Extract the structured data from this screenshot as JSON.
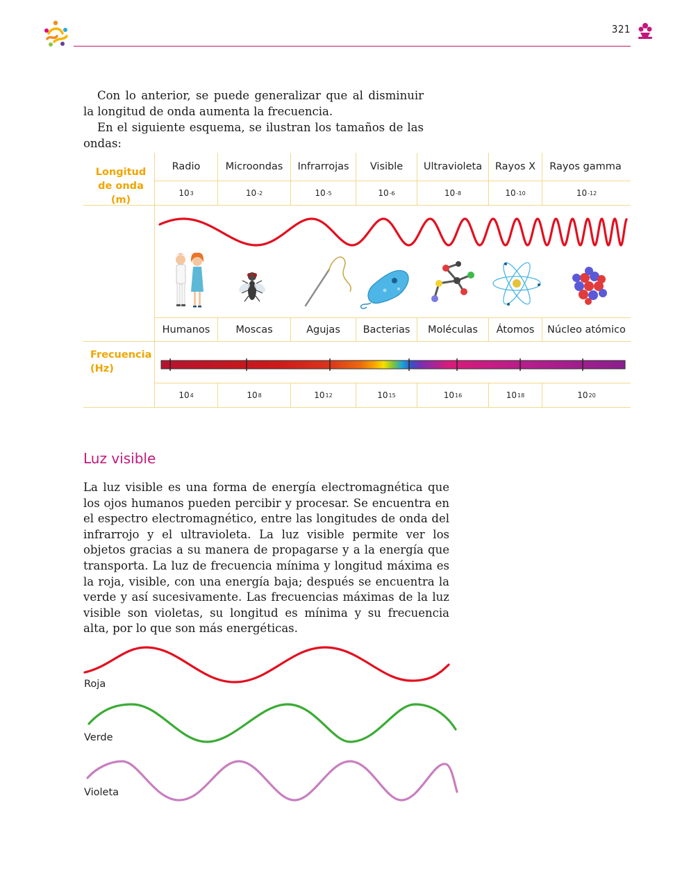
{
  "header": {
    "page_number": "321"
  },
  "intro": {
    "paragraphs": [
      "Con lo anterior, se puede generalizar que al disminuir la longitud de onda aumenta la frecuencia.",
      "En el siguiente esquema, se ilustran los tamaños de las ondas:"
    ]
  },
  "scheme": {
    "wavelength_label": "Longitud de onda (m)",
    "frequency_label": "Frecuencia (Hz)",
    "columns": [
      {
        "name": "Radio",
        "wavelength_base": "10",
        "wavelength_exp": "3",
        "object": "Humanos",
        "frequency_base": "10",
        "frequency_exp": "4"
      },
      {
        "name": "Microondas",
        "wavelength_base": "10",
        "wavelength_exp": "-2",
        "object": "Moscas",
        "frequency_base": "10",
        "frequency_exp": "8"
      },
      {
        "name": "Infrarrojas",
        "wavelength_base": "10",
        "wavelength_exp": "-5",
        "object": "Agujas",
        "frequency_base": "10",
        "frequency_exp": "12"
      },
      {
        "name": "Visible",
        "wavelength_base": "10",
        "wavelength_exp": "-6",
        "object": "Bacterias",
        "frequency_base": "10",
        "frequency_exp": "15"
      },
      {
        "name": "Ultravioleta",
        "wavelength_base": "10",
        "wavelength_exp": "-8",
        "object": "Moléculas",
        "frequency_base": "10",
        "frequency_exp": "16"
      },
      {
        "name": "Rayos X",
        "wavelength_base": "10",
        "wavelength_exp": "-10",
        "object": "Átomos",
        "frequency_base": "10",
        "frequency_exp": "18"
      },
      {
        "name": "Rayos gamma",
        "wavelength_base": "10",
        "wavelength_exp": "-12",
        "object": "Núcleo atómico",
        "frequency_base": "10",
        "frequency_exp": "20"
      }
    ]
  },
  "section": {
    "title": "Luz visible",
    "body": "La luz visible es una forma de energía electromagnética que los ojos humanos pueden percibir y procesar. Se encuentra en el espectro electromagnético, entre las longitudes de onda del infrarrojo y el ultravioleta. La luz visible permite ver los objetos gracias a su manera de propagarse y a la energía que transporta. La luz de frecuencia mínima y longitud máxima es la roja, visible, con una energía baja; después se encuentra la verde y así sucesivamente. Las frecuencias máximas de la luz visible son violetas, su longitud es mínima y su frecuencia alta, por lo que son más energéticas."
  },
  "waves": [
    {
      "label": "Roja",
      "color": "#e30f1f"
    },
    {
      "label": "Verde",
      "color": "#3bab35"
    },
    {
      "label": "Violeta",
      "color": "#c77fc0"
    }
  ],
  "colors": {
    "accent": "#c2185b",
    "label_orange": "#f0a500",
    "grid": "#f2d98a",
    "big_wave": "#e30f1f"
  }
}
